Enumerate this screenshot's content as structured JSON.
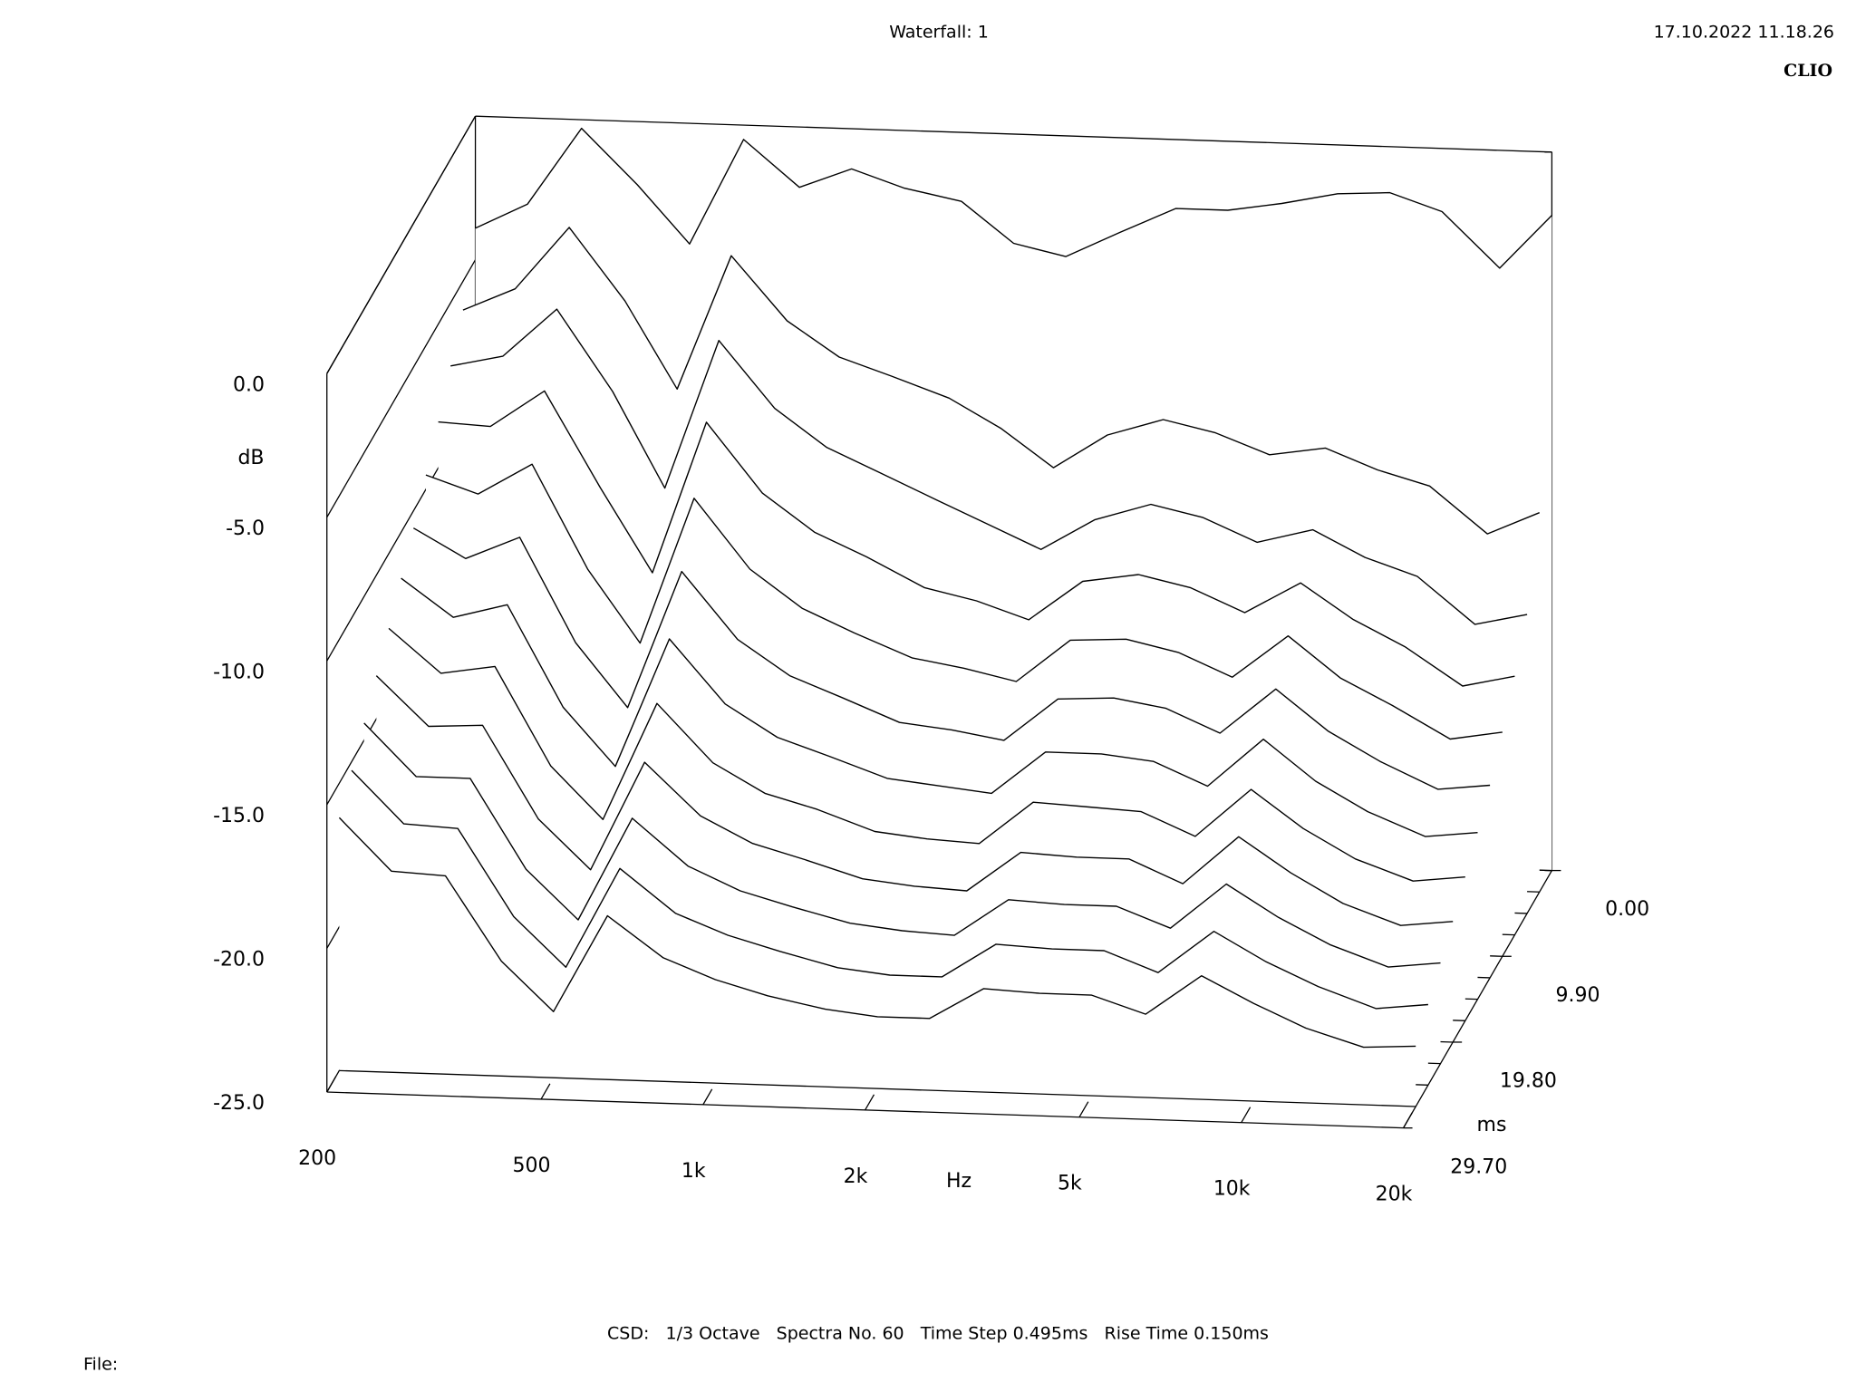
{
  "chart_data": {
    "type": "waterfall",
    "title": "Waterfall: 1",
    "timestamp": "17.10.2022 11.18.26",
    "brand": "CLIO",
    "footer": "CSD:   1/3 Octave   Spectra No. 60   Time Step 0.495ms   Rise Time 0.150ms",
    "file_label": "File:",
    "x_label": "Hz",
    "y_label": "dB",
    "z_label": "ms",
    "color": "#000000",
    "log_x": true,
    "xlim": [
      200,
      20000
    ],
    "xticks": [
      200,
      500,
      {
        "value": 1000,
        "label": "1k"
      },
      {
        "value": 2000,
        "label": "2k"
      },
      {
        "value": 5000,
        "label": "5k"
      },
      {
        "value": 10000,
        "label": "10k"
      },
      {
        "value": 20000,
        "label": "20k"
      }
    ],
    "ylim": [
      -25,
      0
    ],
    "yticks": [
      {
        "value": 0,
        "label": "0.0"
      },
      {
        "value": -5,
        "label": "-5.0"
      },
      {
        "value": -10,
        "label": "-10.0"
      },
      {
        "value": -15,
        "label": "-15.0"
      },
      {
        "value": -20,
        "label": "-20.0"
      },
      {
        "value": -25,
        "label": "-25.0"
      }
    ],
    "zlim": [
      0,
      29.7
    ],
    "zticks": [
      {
        "value": 0,
        "label": "0.00"
      },
      {
        "value": 9.9,
        "label": "9.90"
      },
      {
        "value": 19.8,
        "label": "19.80"
      },
      {
        "value": 29.7,
        "label": "29.70"
      }
    ],
    "x": [
      200,
      250,
      315,
      400,
      500,
      630,
      800,
      1000,
      1250,
      1600,
      2000,
      2500,
      3150,
      4000,
      5000,
      6300,
      8000,
      10000,
      12500,
      16000,
      20000
    ],
    "z": [
      0,
      2.475,
      4.95,
      7.425,
      9.9,
      12.375,
      14.85,
      17.325,
      19.8,
      22.275,
      24.75,
      27.225
    ],
    "series": [
      {
        "values": [
          -3.9,
          -3.0,
          -0.3,
          -2.2,
          -4.2,
          -0.5,
          -2.1,
          -1.4,
          -2.0,
          -2.4,
          -3.8,
          -4.2,
          -3.3,
          -2.4,
          -2.4,
          -2.1,
          -1.7,
          -1.6,
          -2.2,
          -4.1,
          -2.2
        ]
      },
      {
        "values": [
          -6.0,
          -5.2,
          -3.0,
          -5.5,
          -8.5,
          -3.8,
          -6.0,
          -7.2,
          -7.8,
          -8.5,
          -9.5,
          -10.8,
          -9.6,
          -9.0,
          -9.4,
          -10.1,
          -9.8,
          -10.5,
          -11.0,
          -12.6,
          -11.8
        ]
      },
      {
        "values": [
          -7.2,
          -6.8,
          -5.1,
          -7.9,
          -11.2,
          -6.0,
          -8.3,
          -9.6,
          -10.4,
          -11.3,
          -12.1,
          -12.9,
          -11.8,
          -11.2,
          -11.6,
          -12.4,
          -11.9,
          -12.8,
          -13.4,
          -15.0,
          -14.6
        ]
      },
      {
        "values": [
          -8.4,
          -8.5,
          -7.2,
          -10.5,
          -13.4,
          -8.1,
          -10.5,
          -11.8,
          -12.6,
          -13.6,
          -14.0,
          -14.6,
          -13.2,
          -12.9,
          -13.3,
          -14.1,
          -13.0,
          -14.2,
          -15.1,
          -16.4,
          -16.0
        ]
      },
      {
        "values": [
          -9.5,
          -10.1,
          -9.0,
          -12.6,
          -15.1,
          -10.0,
          -12.4,
          -13.7,
          -14.5,
          -15.3,
          -15.6,
          -16.0,
          -14.5,
          -14.4,
          -14.8,
          -15.6,
          -14.1,
          -15.5,
          -16.4,
          -17.5,
          -17.2
        ]
      },
      {
        "values": [
          -10.6,
          -11.6,
          -10.8,
          -14.4,
          -16.6,
          -11.8,
          -14.1,
          -15.3,
          -16.0,
          -16.8,
          -17.0,
          -17.3,
          -15.8,
          -15.7,
          -16.0,
          -16.8,
          -15.2,
          -16.6,
          -17.6,
          -18.5,
          -18.3
        ]
      },
      {
        "values": [
          -11.6,
          -12.9,
          -12.4,
          -15.9,
          -17.9,
          -13.4,
          -15.6,
          -16.7,
          -17.3,
          -18.0,
          -18.2,
          -18.4,
          -16.9,
          -16.9,
          -17.1,
          -17.9,
          -16.2,
          -17.6,
          -18.6,
          -19.4,
          -19.2
        ]
      },
      {
        "values": [
          -12.6,
          -14.1,
          -13.8,
          -17.2,
          -19.0,
          -14.9,
          -16.9,
          -17.9,
          -18.4,
          -19.1,
          -19.3,
          -19.4,
          -17.9,
          -18.0,
          -18.1,
          -18.9,
          -17.2,
          -18.5,
          -19.5,
          -20.2,
          -20.0
        ]
      },
      {
        "values": [
          -13.5,
          -15.2,
          -15.1,
          -18.3,
          -20.0,
          -16.2,
          -18.0,
          -18.9,
          -19.4,
          -20.0,
          -20.2,
          -20.3,
          -18.9,
          -19.0,
          -19.0,
          -19.8,
          -18.1,
          -19.3,
          -20.3,
          -21.0,
          -20.8
        ]
      },
      {
        "values": [
          -14.4,
          -16.2,
          -16.2,
          -19.3,
          -21.0,
          -17.4,
          -19.0,
          -19.8,
          -20.3,
          -20.8,
          -21.0,
          -21.1,
          -19.8,
          -19.9,
          -19.9,
          -20.6,
          -19.0,
          -20.1,
          -21.0,
          -21.7,
          -21.5
        ]
      },
      {
        "values": [
          -15.3,
          -17.1,
          -17.2,
          -20.2,
          -21.9,
          -18.4,
          -19.9,
          -20.6,
          -21.1,
          -21.6,
          -21.8,
          -21.8,
          -20.6,
          -20.7,
          -20.7,
          -21.4,
          -19.9,
          -20.9,
          -21.7,
          -22.4,
          -22.2
        ]
      },
      {
        "values": [
          -16.2,
          -18.0,
          -18.1,
          -21.0,
          -22.7,
          -19.3,
          -20.7,
          -21.4,
          -21.9,
          -22.3,
          -22.5,
          -22.5,
          -21.4,
          -21.5,
          -21.5,
          -22.1,
          -20.7,
          -21.6,
          -22.4,
          -23.0,
          -22.9
        ]
      }
    ]
  }
}
